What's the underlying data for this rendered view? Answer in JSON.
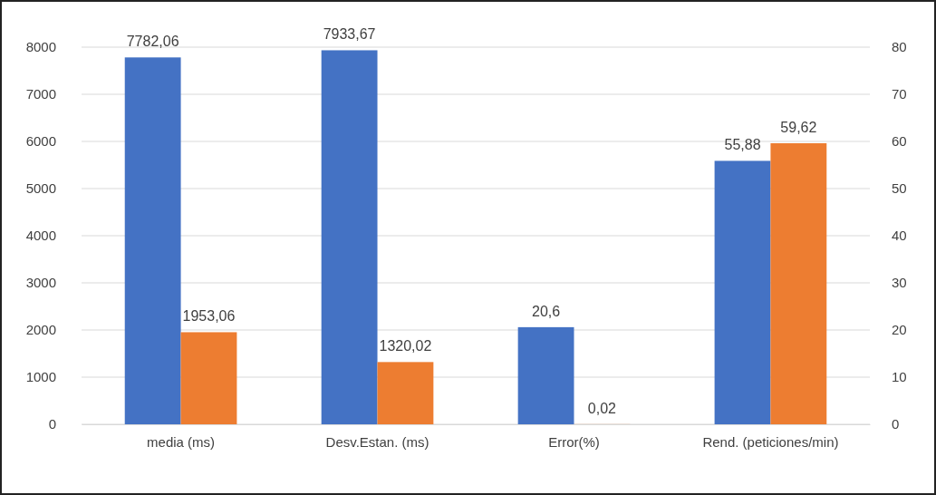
{
  "chart_data": {
    "type": "bar",
    "categories": [
      "media (ms)",
      "Desv.Estan. (ms)",
      "Error(%)",
      "Rend. (peticiones/min)"
    ],
    "series": [
      {
        "color": "#4472c4",
        "values": [
          7782.06,
          7933.67,
          null,
          null
        ],
        "value_labels": [
          "7782,06",
          "7933,67",
          null,
          null
        ]
      },
      {
        "color": "#ed7d31",
        "values": [
          1953.06,
          1320.02,
          null,
          null
        ],
        "value_labels": [
          "1953,06",
          "1320,02",
          null,
          null
        ]
      },
      {
        "color": "#4472c4",
        "axis": "y2",
        "values": [
          null,
          null,
          20.6,
          55.88
        ],
        "value_labels": [
          null,
          null,
          "20,6",
          "55,88"
        ]
      },
      {
        "color": "#ed7d31",
        "axis": "y2",
        "values": [
          null,
          null,
          0.02,
          59.62
        ],
        "value_labels": [
          null,
          null,
          "0,02",
          "59,62"
        ]
      }
    ],
    "ylim": [
      0,
      8000
    ],
    "yticks": [
      0,
      1000,
      2000,
      3000,
      4000,
      5000,
      6000,
      7000,
      8000
    ],
    "y2lim": [
      0,
      80
    ],
    "y2ticks": [
      0,
      10,
      20,
      30,
      40,
      50,
      60,
      70,
      80
    ],
    "grid": "y"
  }
}
